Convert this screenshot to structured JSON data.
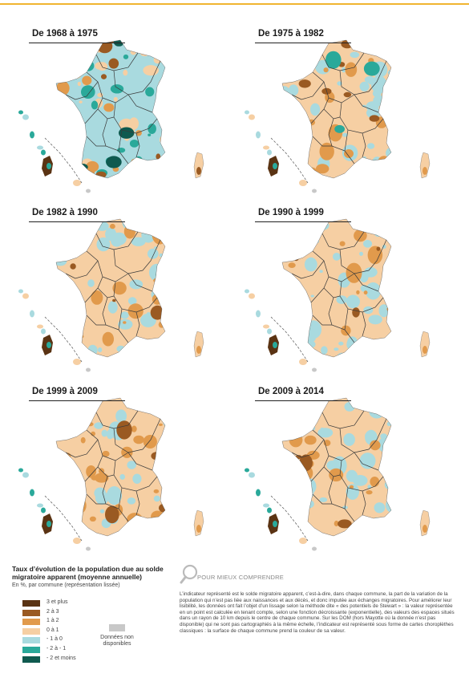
{
  "panels": [
    {
      "title": "De 1968 à 1975"
    },
    {
      "title": "De 1975 à 1982"
    },
    {
      "title": "De 1982 à 1990"
    },
    {
      "title": "De 1990 à 1999"
    },
    {
      "title": "De 1999 à 2009"
    },
    {
      "title": "De 2009 à 2014"
    }
  ],
  "legend": {
    "title": "Taux d’évolution de la population due au solde migratoire apparent (moyenne annuelle)",
    "subtitle": "En %, par commune (représentation lissée)",
    "items": [
      {
        "label": "3 et plus",
        "color": "#5a3313"
      },
      {
        "label": "2 à 3",
        "color": "#9a5a22"
      },
      {
        "label": "1 à 2",
        "color": "#e19a4c"
      },
      {
        "label": "0 à 1",
        "color": "#f6cfa3"
      },
      {
        "label": "- 1 à 0",
        "color": "#a9dadf"
      },
      {
        "label": "- 2 à - 1",
        "color": "#2aa99a"
      },
      {
        "label": "- 2 et moins",
        "color": "#0f5a4f"
      }
    ],
    "na_label": "Données non disponibles",
    "na_color": "#c8c8c8"
  },
  "help": {
    "title": "POUR MIEUX COMPRENDRE",
    "text": "L’indicateur représenté est le solde migratoire apparent, c’est-à-dire, dans chaque commune, la part de la variation de la population qui n’est pas liée aux naissances et aux décès, et donc imputée aux échanges migratoires. Pour améliorer leur lisibilité, les données ont fait l’objet d’un lissage selon la méthode dite « des potentiels de Stewart » : la valeur représentée en un point est calculée en tenant compte, selon une fonction décroissante (exponentielle), des valeurs des espaces situés dans un rayon de 10 km depuis le centre de chaque commune. Sur les DOM (hors Mayotte où la donnée n’est pas disponible) qui ne sont pas cartographiés à la même échelle, l’indicateur est représenté sous forme de cartes choroplèthes classiques : la surface de chaque commune prend la couleur de sa valeur."
  }
}
